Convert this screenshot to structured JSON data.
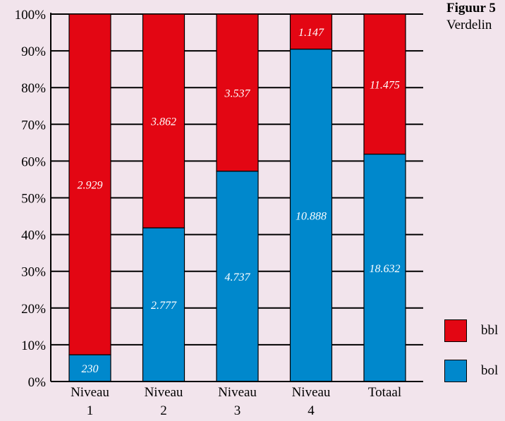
{
  "figure": {
    "number_label": "Figuur 5",
    "subtitle": "Verdelin"
  },
  "colors": {
    "bbl": "#e30613",
    "bol": "#0088cc",
    "background": "#f2e4ec"
  },
  "legend": [
    {
      "key": "bbl",
      "label": "bbl"
    },
    {
      "key": "bol",
      "label": "bol"
    }
  ],
  "chart_data": {
    "type": "bar",
    "stacked": true,
    "normalized": true,
    "categories": [
      [
        "Niveau",
        "1"
      ],
      [
        "Niveau",
        "2"
      ],
      [
        "Niveau",
        "3"
      ],
      [
        "Niveau",
        "4"
      ],
      [
        "Totaal"
      ]
    ],
    "series": [
      {
        "name": "bol",
        "values": [
          230,
          2777,
          4737,
          10888,
          18632
        ],
        "labels": [
          "230",
          "2.777",
          "4.737",
          "10.888",
          "18.632"
        ]
      },
      {
        "name": "bbl",
        "values": [
          2929,
          3862,
          3537,
          1147,
          11475
        ],
        "labels": [
          "2.929",
          "3.862",
          "3.537",
          "1.147",
          "11.475"
        ]
      }
    ],
    "y_ticks": [
      "0%",
      "10%",
      "20%",
      "30%",
      "40%",
      "50%",
      "60%",
      "70%",
      "80%",
      "90%",
      "100%"
    ],
    "ylim": [
      0,
      100
    ],
    "legend_position": "right"
  }
}
